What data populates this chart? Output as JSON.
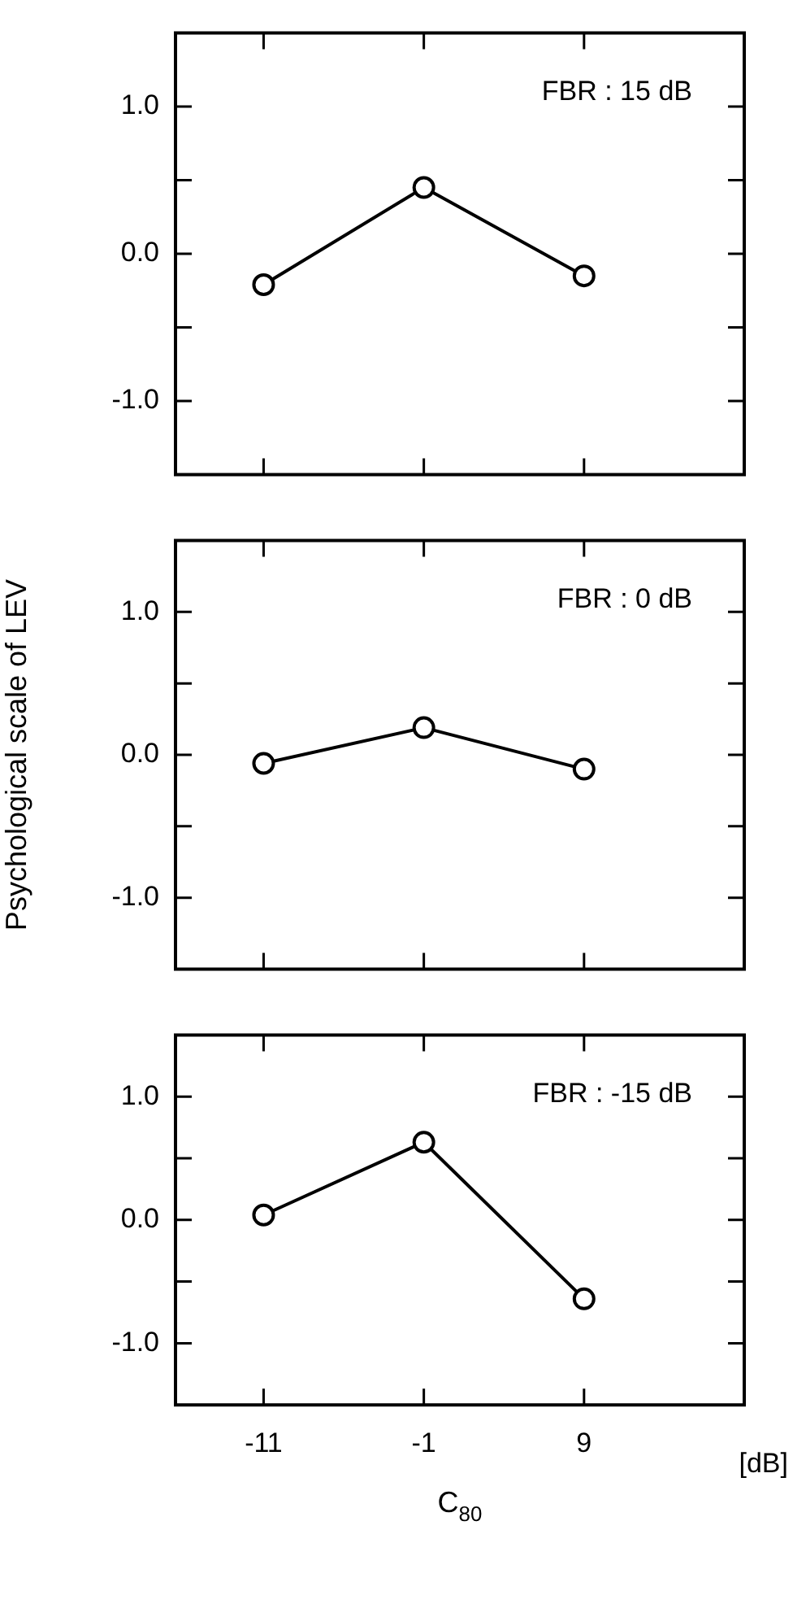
{
  "chart_data": [
    {
      "type": "line",
      "x": [
        -11,
        -1,
        9
      ],
      "values": [
        -0.21,
        0.45,
        -0.15
      ],
      "color": "#000000",
      "marker": "circle",
      "line_style": "solid",
      "xlim": [
        -16.5,
        19
      ],
      "xticks": [
        -11,
        -1,
        9
      ],
      "ylim": [
        -1.5,
        1.5
      ],
      "yticks": [
        {
          "value": -1,
          "label": "-1.0"
        },
        {
          "value": -0.5,
          "label": null
        },
        {
          "value": 0,
          "label": "0.0"
        },
        {
          "value": 0.5,
          "label": null
        },
        {
          "value": 1,
          "label": "1.0"
        }
      ],
      "tick_labels": "y",
      "grid": false,
      "legend": false,
      "annotations": [
        "FBR : 15 dB"
      ]
    },
    {
      "type": "line",
      "x": [
        -11,
        -1,
        9
      ],
      "values": [
        -0.06,
        0.19,
        -0.1
      ],
      "color": "#000000",
      "marker": "circle",
      "line_style": "solid",
      "xlim": [
        -16.5,
        19
      ],
      "xticks": [
        -11,
        -1,
        9
      ],
      "ylim": [
        -1.5,
        1.5
      ],
      "yticks": [
        {
          "value": -1,
          "label": "-1.0"
        },
        {
          "value": -0.5,
          "label": null
        },
        {
          "value": 0,
          "label": "0.0"
        },
        {
          "value": 0.5,
          "label": null
        },
        {
          "value": 1,
          "label": "1.0"
        }
      ],
      "tick_labels": "y",
      "grid": false,
      "legend": false,
      "ylabel": "Psychological scale of LEV",
      "annotations": [
        "FBR : 0 dB"
      ]
    },
    {
      "type": "line",
      "x": [
        -11,
        -1,
        9
      ],
      "values": [
        0.04,
        0.63,
        -0.64
      ],
      "color": "#000000",
      "marker": "circle",
      "line_style": "solid",
      "xlim": [
        -16.5,
        19
      ],
      "xticks": [
        -11,
        -1,
        9
      ],
      "ylim": [
        -1.5,
        1.5
      ],
      "yticks": [
        {
          "value": -1,
          "label": "-1.0"
        },
        {
          "value": -0.5,
          "label": null
        },
        {
          "value": 0,
          "label": "0.0"
        },
        {
          "value": 0.5,
          "label": null
        },
        {
          "value": 1,
          "label": "1.0"
        }
      ],
      "grid": false,
      "legend": false,
      "xlabel": "C$_{80}$",
      "annotations": [
        "FBR : -15 dB",
        "[dB]"
      ]
    }
  ]
}
